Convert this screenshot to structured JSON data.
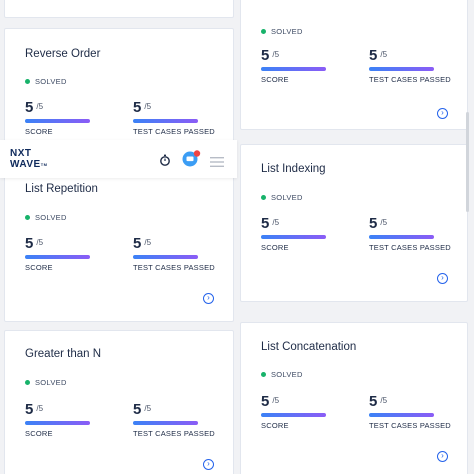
{
  "navbar": {
    "logo_line1": "NXT",
    "logo_line2": "WAVE",
    "logo_tm": "TM",
    "notification_icon": "chat-bubble-icon",
    "notification_badge_color": "#ef4444"
  },
  "labels": {
    "score": "SCORE",
    "test_cases": "TEST CASES PASSED",
    "solved": "SOLVED"
  },
  "colors": {
    "solved_dot": "#17b26a",
    "accent": "#2563eb",
    "bar_start": "#3b82f6",
    "bar_end": "#8b5cf6"
  },
  "cards": [
    {
      "title": "Reverse Order",
      "status": "SOLVED",
      "score": "5",
      "score_total": "/5",
      "score_label": "SCORE",
      "tests": "5",
      "tests_total": "/5",
      "tests_label": "TEST CASES PASSED"
    },
    {
      "title": "",
      "status": "SOLVED",
      "score": "5",
      "score_total": "/5",
      "score_label": "SCORE",
      "tests": "5",
      "tests_total": "/5",
      "tests_label": "TEST CASES PASSED"
    },
    {
      "title": "List Repetition",
      "status": "SOLVED",
      "score": "5",
      "score_total": "/5",
      "score_label": "SCORE",
      "tests": "5",
      "tests_total": "/5",
      "tests_label": "TEST CASES PASSED"
    },
    {
      "title": "List Indexing",
      "status": "SOLVED",
      "score": "5",
      "score_total": "/5",
      "score_label": "SCORE",
      "tests": "5",
      "tests_total": "/5",
      "tests_label": "TEST CASES PASSED"
    },
    {
      "title": "Greater than N",
      "status": "SOLVED",
      "score": "5",
      "score_total": "/5",
      "score_label": "SCORE",
      "tests": "5",
      "tests_total": "/5",
      "tests_label": "TEST CASES PASSED"
    },
    {
      "title": "List Concatenation",
      "status": "SOLVED",
      "score": "5",
      "score_total": "/5",
      "score_label": "SCORE",
      "tests": "5",
      "tests_total": "/5",
      "tests_label": "TEST CASES PASSED"
    }
  ]
}
